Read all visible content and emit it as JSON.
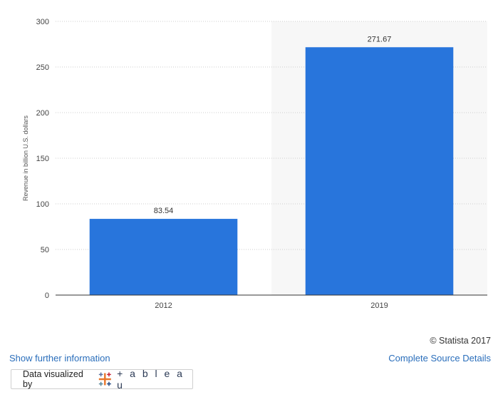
{
  "chart_data": {
    "type": "bar",
    "categories": [
      "2012",
      "2019"
    ],
    "values": [
      83.54,
      271.67
    ],
    "data_labels": [
      "83.54",
      "271.67"
    ],
    "ylabel": "Revenue in billion U.S. dollars",
    "ylim": [
      0,
      300
    ],
    "yticks": [
      "0",
      "50",
      "100",
      "150",
      "200",
      "250",
      "300"
    ],
    "grid": true,
    "highlighted_category": "2019",
    "colors": {
      "bar": "#2875dc",
      "grid": "#cccccc",
      "highlight_band": "#f7f7f7",
      "axis": "#333333"
    }
  },
  "footer": {
    "credit": "© Statista 2017",
    "show_info_link": "Show further information",
    "source_link": "Complete Source Details",
    "tableau_prefix": "Data visualized by",
    "tableau_word": "+ a b l e a u",
    "tableau_logo_icon": "tableau-cross-icon"
  }
}
